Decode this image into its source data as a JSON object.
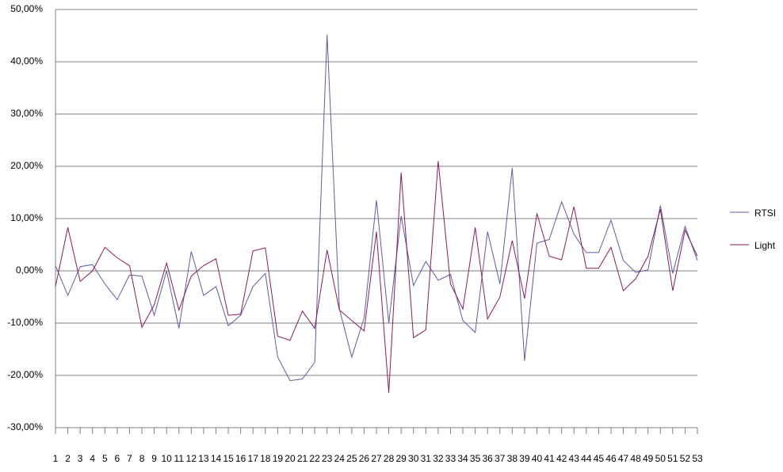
{
  "chart_data": {
    "type": "line",
    "categories": [
      "1",
      "2",
      "3",
      "4",
      "5",
      "6",
      "7",
      "8",
      "9",
      "10",
      "11",
      "12",
      "13",
      "14",
      "15",
      "16",
      "17",
      "18",
      "19",
      "20",
      "21",
      "22",
      "23",
      "24",
      "25",
      "26",
      "27",
      "28",
      "29",
      "30",
      "31",
      "32",
      "33",
      "34",
      "35",
      "36",
      "37",
      "38",
      "39",
      "40",
      "41",
      "42",
      "43",
      "44",
      "45",
      "46",
      "47",
      "48",
      "49",
      "50",
      "51",
      "52",
      "53"
    ],
    "series": [
      {
        "name": "RTSI",
        "color": "#5c5ca8",
        "values": [
          1,
          -4.7,
          0.8,
          1.2,
          -2.5,
          -5.5,
          -0.8,
          -1,
          -8.5,
          0,
          -11,
          3.7,
          -4.7,
          -3,
          -10.5,
          -8.5,
          -3,
          -0.5,
          -16.5,
          -21,
          -20.7,
          -17.5,
          45.2,
          -7.3,
          -16.5,
          -9,
          13.5,
          -10,
          10.5,
          -2.8,
          1.8,
          -1.8,
          -0.7,
          -9.5,
          -11.8,
          7.5,
          -2.5,
          19.7,
          -17.2,
          5.3,
          6,
          13.2,
          7,
          3.5,
          3.5,
          9.7,
          2,
          -0.3,
          0.2,
          12.5,
          -0.5,
          8.5,
          2
        ]
      },
      {
        "name": "Light",
        "color": "#8c1a5c",
        "values": [
          -3,
          8.3,
          -2,
          0,
          4.5,
          2.5,
          1,
          -10.8,
          -6.5,
          1.5,
          -7.5,
          -1,
          1,
          2.3,
          -8.5,
          -8.3,
          3.8,
          4.4,
          -12.5,
          -13.3,
          -7.7,
          -11,
          4,
          -7.5,
          -9.5,
          -11.5,
          7.5,
          -23.3,
          18.8,
          -12.8,
          -11.3,
          21,
          -2.5,
          -7.3,
          8.3,
          -9.2,
          -5,
          5.8,
          -5.3,
          11,
          2.8,
          2.1,
          12.3,
          0.5,
          0.5,
          4.5,
          -3.8,
          -1.5,
          2.8,
          11.8,
          -3.8,
          7.8,
          2.8
        ]
      }
    ],
    "ylim": [
      -30,
      50
    ],
    "yticks": [
      {
        "value": -30,
        "label": "-30,00%"
      },
      {
        "value": -20,
        "label": "-20,00%"
      },
      {
        "value": -10,
        "label": "-10,00%"
      },
      {
        "value": 0,
        "label": "0,00%"
      },
      {
        "value": 10,
        "label": "10,00%"
      },
      {
        "value": 20,
        "label": "20,00%"
      },
      {
        "value": 30,
        "label": "30,00%"
      },
      {
        "value": 40,
        "label": "40,00%"
      },
      {
        "value": 50,
        "label": "50,00%"
      }
    ],
    "grid": true,
    "legend": "right"
  }
}
